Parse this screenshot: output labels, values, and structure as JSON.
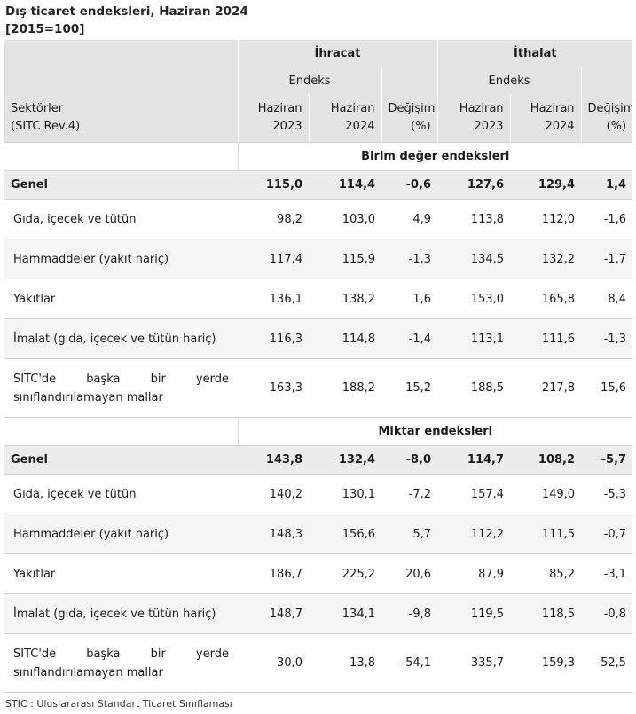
{
  "title": "Dış ticaret endeksleri, Haziran 2024",
  "subtitle": "[2015=100]",
  "header": {
    "export_group": "İhracat",
    "import_group": "İthalat",
    "index_label": "Endeks",
    "sector_label_line1": "Sektörler",
    "sector_label_line2": "(SITC Rev.4)",
    "col_2023_line1": "Haziran",
    "col_2023_line2": "2023",
    "col_2024_line1": "Haziran",
    "col_2024_line2": "2024",
    "change_line1": "Değişim",
    "change_line2": "(%)"
  },
  "sections": [
    {
      "title": "Birim değer endeksleri",
      "genel": {
        "label": "Genel",
        "values": [
          "115,0",
          "114,4",
          "-0,6",
          "127,6",
          "129,4",
          "1,4"
        ]
      },
      "rows": [
        {
          "label": "Gıda, içecek ve tütün",
          "values": [
            "98,2",
            "103,0",
            "4,9",
            "113,8",
            "112,0",
            "-1,6"
          ]
        },
        {
          "label": "Hammaddeler (yakıt hariç)",
          "values": [
            "117,4",
            "115,9",
            "-1,3",
            "134,5",
            "132,2",
            "-1,7"
          ]
        },
        {
          "label": "Yakıtlar",
          "values": [
            "136,1",
            "138,2",
            "1,6",
            "153,0",
            "165,8",
            "8,4"
          ]
        },
        {
          "label": "İmalat (gıda, içecek ve tütün hariç)",
          "values": [
            "116,3",
            "114,8",
            "-1,4",
            "113,1",
            "111,6",
            "-1,3"
          ]
        },
        {
          "label": "SITC'de başka bir yerde sınıflandırılamayan mallar",
          "values": [
            "163,3",
            "188,2",
            "15,2",
            "188,5",
            "217,8",
            "15,6"
          ]
        }
      ]
    },
    {
      "title": "Miktar endeksleri",
      "genel": {
        "label": "Genel",
        "values": [
          "143,8",
          "132,4",
          "-8,0",
          "114,7",
          "108,2",
          "-5,7"
        ]
      },
      "rows": [
        {
          "label": "Gıda, içecek ve tütün",
          "values": [
            "140,2",
            "130,1",
            "-7,2",
            "157,4",
            "149,0",
            "-5,3"
          ]
        },
        {
          "label": "Hammaddeler (yakıt hariç)",
          "values": [
            "148,3",
            "156,6",
            "5,7",
            "112,2",
            "111,5",
            "-0,7"
          ]
        },
        {
          "label": "Yakıtlar",
          "values": [
            "186,7",
            "225,2",
            "20,6",
            "87,9",
            "85,2",
            "-3,1"
          ]
        },
        {
          "label": "İmalat (gıda, içecek ve tütün hariç)",
          "values": [
            "148,7",
            "134,1",
            "-9,8",
            "119,5",
            "118,5",
            "-0,8"
          ]
        },
        {
          "label": "SITC'de başka bir yerde sınıflandırılamayan mallar",
          "values": [
            "30,0",
            "13,8",
            "-54,1",
            "335,7",
            "159,3",
            "-52,5"
          ]
        }
      ]
    }
  ],
  "footnote": "STIC : Uluslararası Standart Ticaret Sınıflaması"
}
